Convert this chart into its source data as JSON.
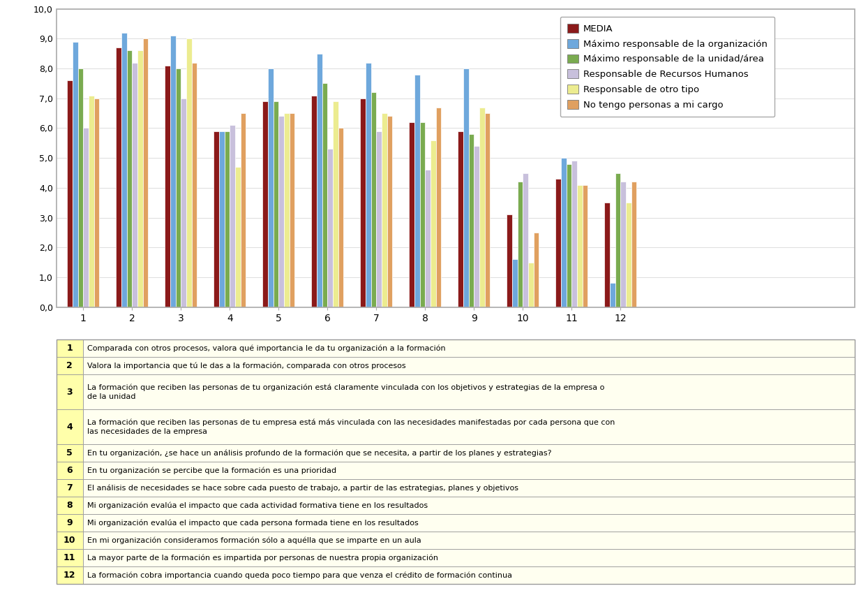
{
  "categories": [
    "1",
    "2",
    "3",
    "4",
    "5",
    "6",
    "7",
    "8",
    "9",
    "10",
    "11",
    "12"
  ],
  "series_names": [
    "MEDIA",
    "Máximo responsable de la organización",
    "Máximo responsable de la unidad/área",
    "Responsable de Recursos Humanos",
    "Responsable de otro tipo",
    "No tengo personas a mi cargo"
  ],
  "series_values": [
    [
      7.6,
      8.7,
      8.1,
      5.9,
      6.9,
      7.1,
      7.0,
      6.2,
      5.9,
      3.1,
      4.3,
      3.5
    ],
    [
      8.9,
      9.2,
      9.1,
      5.9,
      8.0,
      8.5,
      8.2,
      7.8,
      8.0,
      1.6,
      5.0,
      0.8
    ],
    [
      8.0,
      8.6,
      8.0,
      5.9,
      6.9,
      7.5,
      7.2,
      6.2,
      5.8,
      4.2,
      4.8,
      4.5
    ],
    [
      6.0,
      8.2,
      7.0,
      6.1,
      6.4,
      5.3,
      5.9,
      4.6,
      5.4,
      4.5,
      4.9,
      4.2
    ],
    [
      7.1,
      8.6,
      9.0,
      4.7,
      6.5,
      6.9,
      6.5,
      5.6,
      6.7,
      1.5,
      4.1,
      3.5
    ],
    [
      7.0,
      9.0,
      8.2,
      6.5,
      6.5,
      6.0,
      6.4,
      6.7,
      6.5,
      2.5,
      4.1,
      4.2
    ]
  ],
  "colors": [
    "#8B1A1A",
    "#6EA8DC",
    "#7AAB50",
    "#C8C0DC",
    "#ECEC90",
    "#E0A060"
  ],
  "ylim": [
    0.0,
    10.0
  ],
  "yticks": [
    0.0,
    1.0,
    2.0,
    3.0,
    4.0,
    5.0,
    6.0,
    7.0,
    8.0,
    9.0,
    10.0
  ],
  "ytick_labels": [
    "0,0",
    "1,0",
    "2,0",
    "3,0",
    "4,0",
    "5,0",
    "6,0",
    "7,0",
    "8,0",
    "9,0",
    "10,0"
  ],
  "bar_width": 0.11,
  "table_rows": [
    [
      "1",
      "Comparada con otros procesos, valora qué importancia le da tu organización a la formación",
      1
    ],
    [
      "2",
      "Valora la importancia que tú le das a la formación, comparada con otros procesos",
      1
    ],
    [
      "3",
      "La formación que reciben las personas de tu organización está claramente vinculada con los objetivos y estrategias de la empresa o\nde la unidad",
      2
    ],
    [
      "4",
      "La formación que reciben las personas de tu empresa está más vinculada con las necesidades manifestadas por cada persona que con\nlas necesidades de la empresa",
      2
    ],
    [
      "5",
      "En tu organización, ¿se hace un análisis profundo de la formación que se necesita, a partir de los planes y estrategias?",
      1
    ],
    [
      "6",
      "En tu organización se percibe que la formación es una prioridad",
      1
    ],
    [
      "7",
      "El análisis de necesidades se hace sobre cada puesto de trabajo, a partir de las estrategias, planes y objetivos",
      1
    ],
    [
      "8",
      "Mi organización evalúa el impacto que cada actividad formativa tiene en los resultados",
      1
    ],
    [
      "9",
      "Mi organización evalúa el impacto que cada persona formada tiene en los resultados",
      1
    ],
    [
      "10",
      "En mi organización consideramos formación sólo a aquélla que se imparte en un aula",
      1
    ],
    [
      "11",
      "La mayor parte de la formación es impartida por personas de nuestra propia organización",
      1
    ],
    [
      "12",
      "La formación cobra importancia cuando queda poco tiempo para que venza el crédito de formación continua",
      1
    ]
  ],
  "num_col_bg": "#FFFFAA",
  "txt_col_bg": "#FFFFF0",
  "table_border": "#999999",
  "chart_border": "#AAAAAA",
  "grid_color": "#DDDDDD",
  "fig_bg": "#FFFFFF"
}
